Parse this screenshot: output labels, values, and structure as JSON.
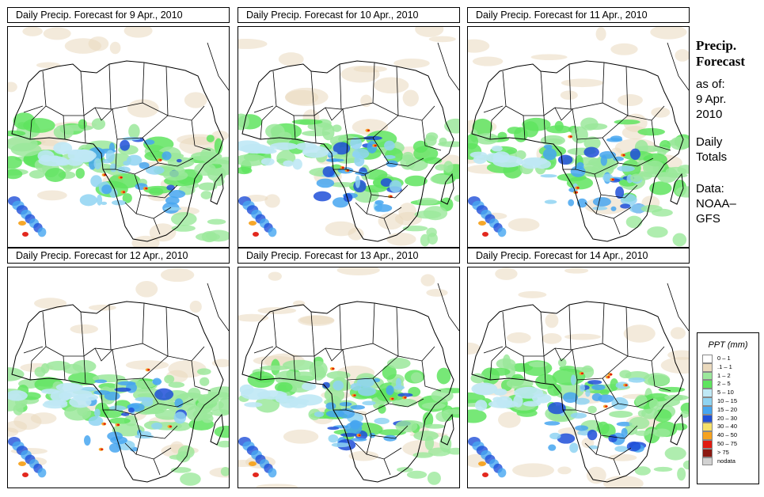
{
  "panels": [
    {
      "title": "Daily Precip. Forecast for  9 Apr., 2010"
    },
    {
      "title": "Daily Precip. Forecast for  10 Apr., 2010"
    },
    {
      "title": "Daily Precip. Forecast for  11 Apr., 2010"
    },
    {
      "title": "Daily Precip. Forecast for  12 Apr., 2010"
    },
    {
      "title": "Daily Precip. Forecast for  13 Apr., 2010"
    },
    {
      "title": "Daily Precip. Forecast for  14 Apr., 2010"
    }
  ],
  "sidebar": {
    "title_line1": "Precip.",
    "title_line2": "Forecast",
    "asof_line1": "as of:",
    "asof_line2": "9 Apr.",
    "asof_line3": "2010",
    "daily_line1": "Daily",
    "daily_line2": "Totals",
    "data_line1": "Data:",
    "data_line2": "NOAA–",
    "data_line3": "GFS"
  },
  "legend": {
    "title": "PPT (mm)",
    "items": [
      {
        "label": "0 – 1",
        "color": "#ffffff"
      },
      {
        "label": ".1 – 1",
        "color": "#ead9bd"
      },
      {
        "label": "1 – 2",
        "color": "#9be89b"
      },
      {
        "label": "2 – 5",
        "color": "#5fe45f"
      },
      {
        "label": "5 – 10",
        "color": "#bfe8f5"
      },
      {
        "label": "10 – 15",
        "color": "#8fd4f2"
      },
      {
        "label": "15 – 20",
        "color": "#46a6f0"
      },
      {
        "label": "20 – 30",
        "color": "#1f4fd8"
      },
      {
        "label": "30 – 40",
        "color": "#f5e06a"
      },
      {
        "label": "40 – 50",
        "color": "#f5a21f"
      },
      {
        "label": "50 – 75",
        "color": "#e01c12"
      },
      {
        "label": "> 75",
        "color": "#8c1a12"
      },
      {
        "label": "nodata",
        "color": "#d2d2d2"
      }
    ]
  }
}
